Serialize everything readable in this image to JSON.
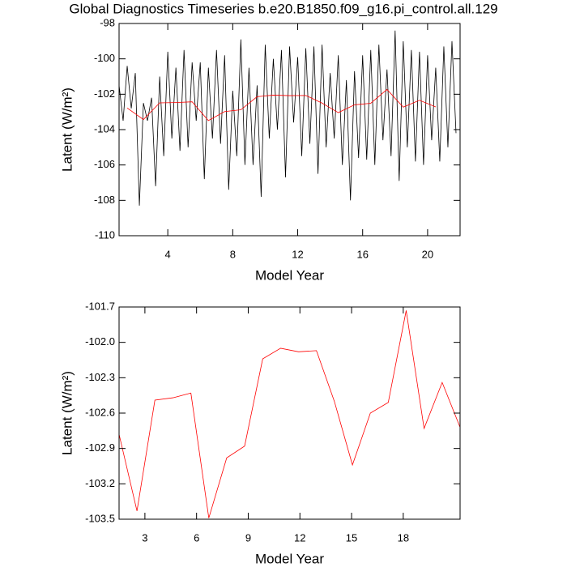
{
  "chart_data": [
    {
      "type": "line",
      "title": "Global Diagnostics Timeseries b.e20.B1850.f09_g16.pi_control.all.129",
      "xlabel": "Model Year",
      "ylabel": "Latent (W/m²)",
      "xlim": [
        1,
        22
      ],
      "xticks": [
        4,
        8,
        12,
        16,
        20
      ],
      "ylim": [
        -110,
        -98
      ],
      "yticks": [
        -110,
        -108,
        -106,
        -104,
        -102,
        -100,
        -98
      ],
      "series": [
        {
          "color": "#000000",
          "x": [
            1,
            1.25,
            1.5,
            1.75,
            2,
            2.25,
            2.5,
            2.75,
            3,
            3.25,
            3.5,
            3.75,
            4,
            4.25,
            4.5,
            4.75,
            5,
            5.25,
            5.5,
            5.75,
            6,
            6.25,
            6.5,
            6.75,
            7,
            7.25,
            7.5,
            7.75,
            8,
            8.25,
            8.5,
            8.75,
            9,
            9.25,
            9.5,
            9.75,
            10,
            10.25,
            10.5,
            10.75,
            11,
            11.25,
            11.5,
            11.75,
            12,
            12.25,
            12.5,
            12.75,
            13,
            13.25,
            13.5,
            13.75,
            14,
            14.25,
            14.5,
            14.75,
            15,
            15.25,
            15.5,
            15.75,
            16,
            16.25,
            16.5,
            16.75,
            17,
            17.25,
            17.5,
            17.75,
            18,
            18.25,
            18.5,
            18.75,
            19,
            19.25,
            19.5,
            19.75,
            20,
            20.25,
            20.5,
            20.75,
            21,
            21.25,
            21.5,
            21.75
          ],
          "values": [
            -101.5,
            -103.5,
            -100.4,
            -102.8,
            -100.8,
            -108.3,
            -102.5,
            -103.5,
            -102.2,
            -107.2,
            -101,
            -105.5,
            -99.6,
            -104.5,
            -100.5,
            -105.2,
            -99.5,
            -105,
            -100.2,
            -103.5,
            -100.2,
            -106.8,
            -100.5,
            -104.5,
            -99.5,
            -104.8,
            -99.8,
            -107.4,
            -101.8,
            -105.5,
            -98.9,
            -106,
            -100.5,
            -106,
            -101.5,
            -107.8,
            -99.2,
            -104.5,
            -100,
            -104,
            -99.5,
            -106.7,
            -99.3,
            -103.6,
            -99.9,
            -105.5,
            -99.4,
            -104.8,
            -99.3,
            -106.5,
            -99.2,
            -105,
            -100.8,
            -104.5,
            -99.8,
            -106,
            -101.2,
            -108,
            -100.7,
            -105.6,
            -99.8,
            -105.7,
            -99.5,
            -106,
            -99.2,
            -104.6,
            -100.6,
            -105.5,
            -98.4,
            -106.9,
            -99,
            -105,
            -99.5,
            -105.8,
            -99.6,
            -106,
            -99.8,
            -104.6,
            -100.5,
            -105.8,
            -99.3,
            -105,
            -99,
            -104.2
          ]
        },
        {
          "color": "#ff0000",
          "x": [
            1.5,
            2.5,
            3.5,
            4.5,
            5.5,
            6.5,
            7.5,
            8.5,
            9.5,
            10.5,
            11.5,
            12.5,
            13.5,
            14.5,
            15.5,
            16.5,
            17.5,
            18.5,
            19.5,
            20.5
          ],
          "values": [
            -102.78,
            -103.43,
            -102.49,
            -102.47,
            -102.43,
            -103.49,
            -102.98,
            -102.88,
            -102.14,
            -102.05,
            -102.08,
            -102.07,
            -102.5,
            -103.04,
            -102.6,
            -102.51,
            -101.73,
            -102.73,
            -102.34,
            -102.72
          ]
        }
      ]
    },
    {
      "type": "line",
      "xlabel": "Model Year",
      "ylabel": "Latent (W/m²)",
      "xlim": [
        1.5,
        21.3
      ],
      "xticks": [
        3,
        6,
        9,
        12,
        15,
        18
      ],
      "ylim": [
        -103.5,
        -101.7
      ],
      "yticks": [
        -103.5,
        -103.2,
        -102.9,
        -102.6,
        -102.3,
        {
          "value": -102,
          "label": "-102.0"
        },
        -101.7
      ],
      "series": [
        {
          "color": "#ff0000",
          "x": [
            1.5,
            2.54,
            3.58,
            4.63,
            5.67,
            6.71,
            7.75,
            8.79,
            9.84,
            10.88,
            11.92,
            12.96,
            14.0,
            15.05,
            16.09,
            17.13,
            18.17,
            19.21,
            20.26,
            21.3
          ],
          "values": [
            -102.78,
            -103.43,
            -102.49,
            -102.47,
            -102.43,
            -103.49,
            -102.98,
            -102.88,
            -102.14,
            -102.05,
            -102.08,
            -102.07,
            -102.5,
            -103.04,
            -102.6,
            -102.51,
            -101.73,
            -102.73,
            -102.34,
            -102.72
          ]
        }
      ]
    }
  ]
}
